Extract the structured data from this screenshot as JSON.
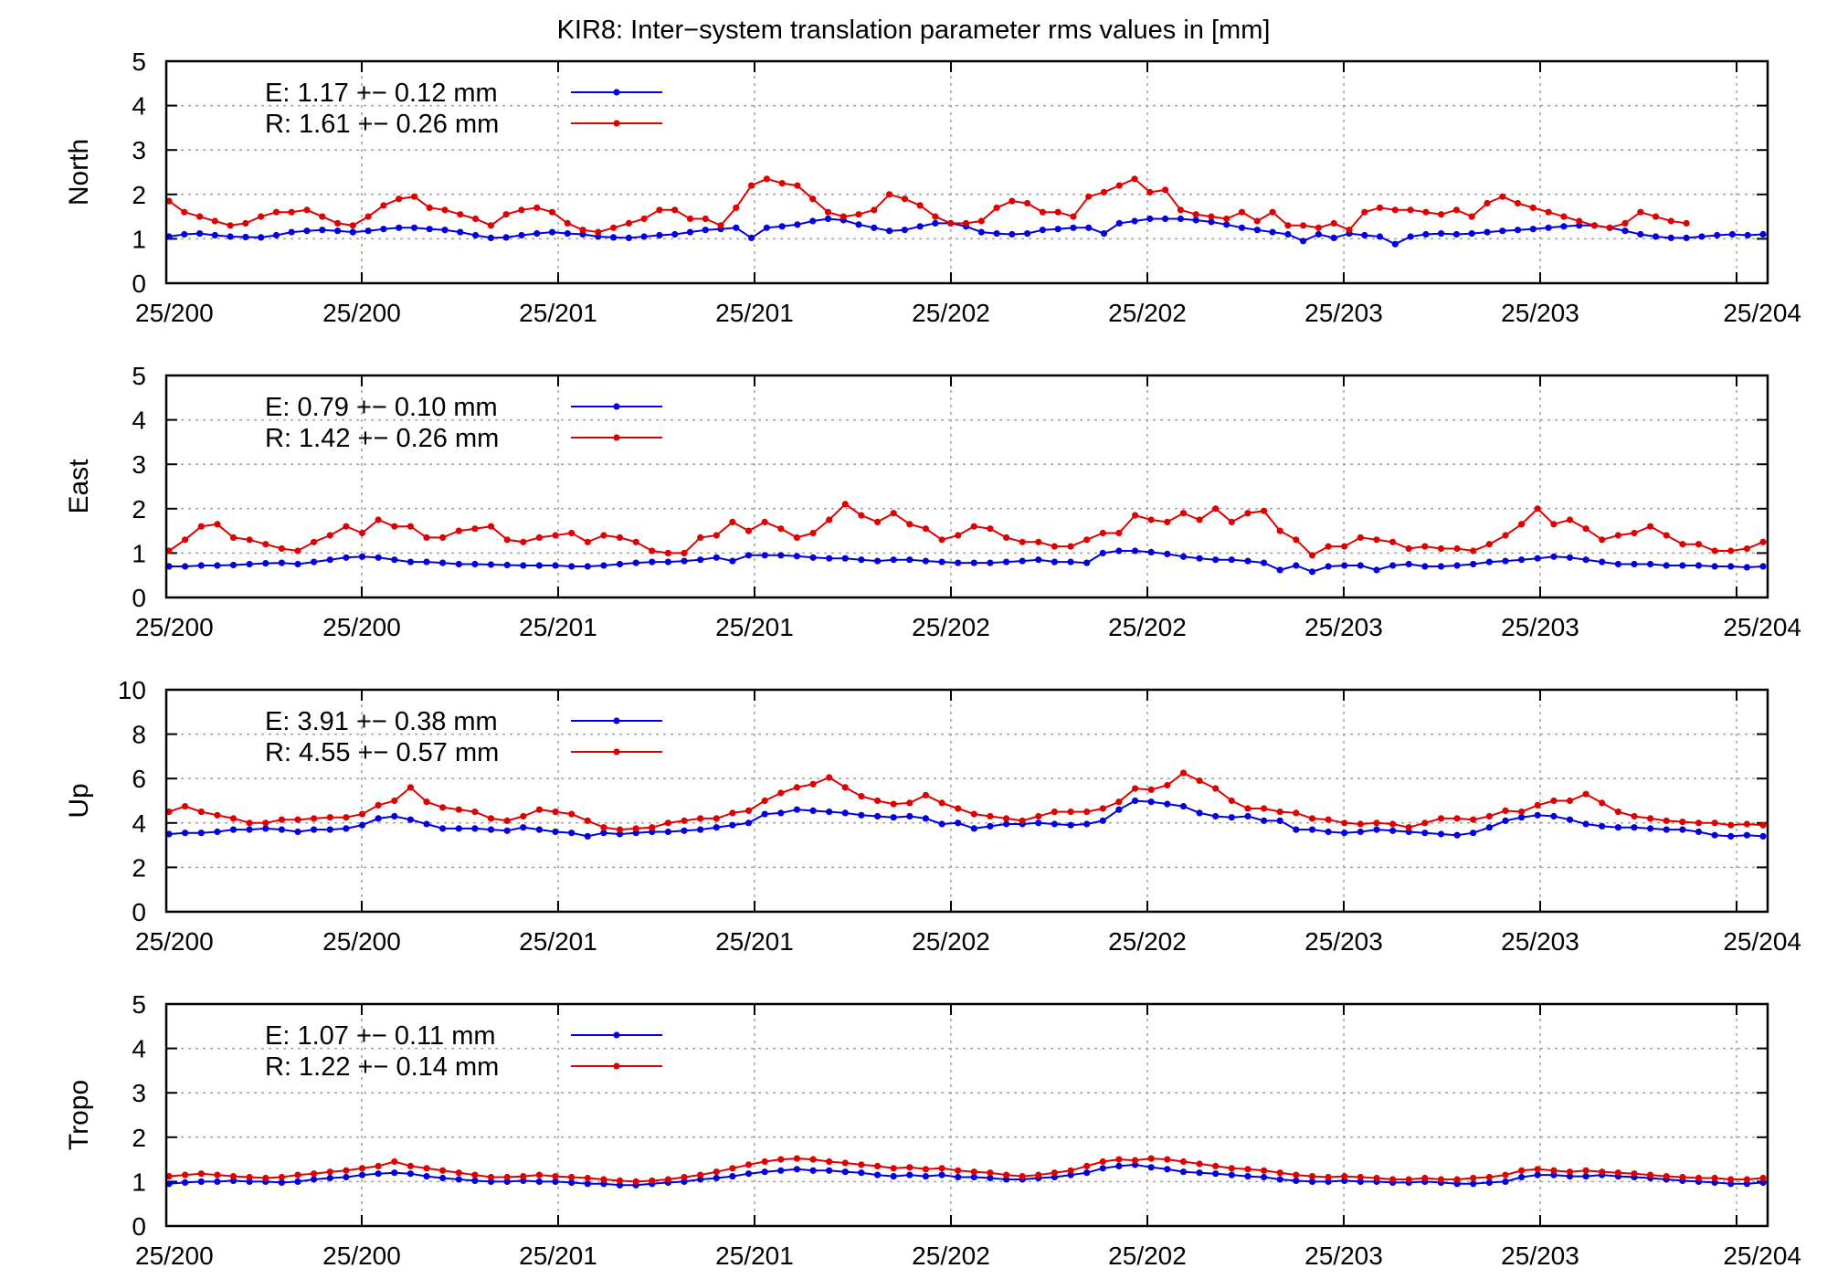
{
  "title": "KIR8: Inter−system translation parameter rms values in [mm]",
  "colors": {
    "E": "#0000e0",
    "R": "#e00000",
    "grid": "#a0a0a0",
    "axis": "#000000"
  },
  "x_tick_labels": [
    "25/200",
    "25/200",
    "25/201",
    "25/201",
    "25/202",
    "25/202",
    "25/203",
    "25/203",
    "25/204"
  ],
  "chart_data": [
    {
      "type": "line",
      "panel": "North",
      "ylabel": "North",
      "ylim": [
        0,
        5
      ],
      "yticks": [
        0,
        1,
        2,
        3,
        4,
        5
      ],
      "grid": true,
      "legend_position": "top-left",
      "series": [
        {
          "name": "E",
          "legend": "E:   1.17 +− 0.12 mm",
          "values": [
            1.05,
            1.1,
            1.12,
            1.08,
            1.05,
            1.04,
            1.03,
            1.08,
            1.15,
            1.18,
            1.2,
            1.18,
            1.15,
            1.18,
            1.22,
            1.25,
            1.25,
            1.22,
            1.2,
            1.15,
            1.08,
            1.02,
            1.03,
            1.08,
            1.12,
            1.15,
            1.12,
            1.1,
            1.05,
            1.03,
            1.02,
            1.05,
            1.08,
            1.1,
            1.15,
            1.2,
            1.22,
            1.25,
            1.02,
            1.25,
            1.28,
            1.32,
            1.4,
            1.45,
            1.42,
            1.32,
            1.25,
            1.18,
            1.2,
            1.28,
            1.35,
            1.35,
            1.28,
            1.15,
            1.12,
            1.1,
            1.12,
            1.2,
            1.22,
            1.25,
            1.25,
            1.12,
            1.35,
            1.4,
            1.45,
            1.45,
            1.45,
            1.42,
            1.38,
            1.32,
            1.25,
            1.2,
            1.15,
            1.1,
            0.95,
            1.1,
            1.02,
            1.12,
            1.08,
            1.05,
            0.88,
            1.05,
            1.1,
            1.12,
            1.1,
            1.12,
            1.15,
            1.18,
            1.2,
            1.22,
            1.25,
            1.28,
            1.3,
            1.3,
            1.25,
            1.18,
            1.1,
            1.05,
            1.02,
            1.02,
            1.05,
            1.08,
            1.1,
            1.08,
            1.1
          ]
        },
        {
          "name": "R",
          "legend": "R:   1.61 +− 0.26 mm",
          "values": [
            1.85,
            1.6,
            1.5,
            1.4,
            1.3,
            1.35,
            1.5,
            1.6,
            1.6,
            1.65,
            1.5,
            1.35,
            1.3,
            1.5,
            1.75,
            1.9,
            1.95,
            1.7,
            1.65,
            1.55,
            1.45,
            1.3,
            1.55,
            1.65,
            1.7,
            1.6,
            1.35,
            1.2,
            1.15,
            1.25,
            1.35,
            1.45,
            1.65,
            1.65,
            1.45,
            1.45,
            1.3,
            1.7,
            2.2,
            2.35,
            2.25,
            2.2,
            1.9,
            1.6,
            1.5,
            1.55,
            1.65,
            2.0,
            1.9,
            1.75,
            1.5,
            1.35,
            1.35,
            1.4,
            1.7,
            1.85,
            1.8,
            1.6,
            1.6,
            1.5,
            1.95,
            2.05,
            2.2,
            2.35,
            2.05,
            2.1,
            1.65,
            1.55,
            1.5,
            1.45,
            1.6,
            1.4,
            1.6,
            1.3,
            1.3,
            1.25,
            1.35,
            1.2,
            1.6,
            1.7,
            1.65,
            1.65,
            1.6,
            1.55,
            1.65,
            1.5,
            1.8,
            1.95,
            1.8,
            1.7,
            1.6,
            1.5,
            1.4,
            1.3,
            1.25,
            1.35,
            1.6,
            1.5,
            1.4,
            1.35
          ]
        }
      ]
    },
    {
      "type": "line",
      "panel": "East",
      "ylabel": "East",
      "ylim": [
        0,
        5
      ],
      "yticks": [
        0,
        1,
        2,
        3,
        4,
        5
      ],
      "grid": true,
      "legend_position": "top-left",
      "series": [
        {
          "name": "E",
          "legend": "E:   0.79 +− 0.10 mm",
          "values": [
            0.7,
            0.7,
            0.72,
            0.72,
            0.73,
            0.75,
            0.77,
            0.78,
            0.75,
            0.8,
            0.85,
            0.9,
            0.92,
            0.9,
            0.85,
            0.8,
            0.8,
            0.78,
            0.75,
            0.75,
            0.74,
            0.73,
            0.72,
            0.72,
            0.72,
            0.7,
            0.7,
            0.72,
            0.75,
            0.78,
            0.8,
            0.8,
            0.82,
            0.85,
            0.9,
            0.82,
            0.95,
            0.95,
            0.95,
            0.93,
            0.9,
            0.88,
            0.88,
            0.85,
            0.82,
            0.85,
            0.85,
            0.82,
            0.8,
            0.78,
            0.78,
            0.78,
            0.8,
            0.82,
            0.85,
            0.8,
            0.8,
            0.78,
            1.0,
            1.05,
            1.05,
            1.02,
            0.98,
            0.92,
            0.88,
            0.85,
            0.85,
            0.82,
            0.78,
            0.62,
            0.72,
            0.58,
            0.7,
            0.72,
            0.72,
            0.62,
            0.72,
            0.75,
            0.7,
            0.7,
            0.72,
            0.75,
            0.8,
            0.82,
            0.85,
            0.88,
            0.92,
            0.9,
            0.85,
            0.8,
            0.75,
            0.75,
            0.75,
            0.72,
            0.72,
            0.72,
            0.7,
            0.7,
            0.68,
            0.7
          ]
        },
        {
          "name": "R",
          "legend": "R:   1.42 +− 0.26 mm",
          "values": [
            1.05,
            1.3,
            1.6,
            1.65,
            1.35,
            1.3,
            1.2,
            1.1,
            1.05,
            1.25,
            1.4,
            1.6,
            1.45,
            1.75,
            1.6,
            1.6,
            1.35,
            1.35,
            1.5,
            1.55,
            1.6,
            1.3,
            1.25,
            1.35,
            1.4,
            1.45,
            1.25,
            1.4,
            1.35,
            1.25,
            1.05,
            1.0,
            1.0,
            1.35,
            1.4,
            1.7,
            1.5,
            1.7,
            1.55,
            1.35,
            1.45,
            1.75,
            2.1,
            1.85,
            1.7,
            1.9,
            1.65,
            1.55,
            1.3,
            1.4,
            1.6,
            1.55,
            1.35,
            1.25,
            1.25,
            1.15,
            1.15,
            1.3,
            1.45,
            1.45,
            1.85,
            1.75,
            1.7,
            1.9,
            1.75,
            2.0,
            1.7,
            1.9,
            1.95,
            1.5,
            1.3,
            0.95,
            1.15,
            1.15,
            1.35,
            1.3,
            1.25,
            1.1,
            1.15,
            1.1,
            1.1,
            1.05,
            1.2,
            1.4,
            1.65,
            2.0,
            1.65,
            1.75,
            1.55,
            1.3,
            1.4,
            1.45,
            1.6,
            1.4,
            1.2,
            1.2,
            1.05,
            1.05,
            1.1,
            1.25
          ]
        }
      ]
    },
    {
      "type": "line",
      "panel": "Up",
      "ylabel": "Up",
      "ylim": [
        0,
        10
      ],
      "yticks": [
        0,
        2,
        4,
        6,
        8,
        10
      ],
      "grid": true,
      "legend_position": "top-left",
      "series": [
        {
          "name": "E",
          "legend": "E:   3.91 +− 0.38 mm",
          "values": [
            3.5,
            3.55,
            3.55,
            3.6,
            3.7,
            3.7,
            3.75,
            3.7,
            3.6,
            3.7,
            3.7,
            3.75,
            3.9,
            4.2,
            4.3,
            4.15,
            3.95,
            3.75,
            3.75,
            3.75,
            3.7,
            3.65,
            3.8,
            3.7,
            3.6,
            3.55,
            3.4,
            3.55,
            3.5,
            3.55,
            3.6,
            3.6,
            3.65,
            3.7,
            3.8,
            3.9,
            4.0,
            4.4,
            4.45,
            4.6,
            4.55,
            4.5,
            4.45,
            4.35,
            4.3,
            4.25,
            4.3,
            4.2,
            3.95,
            4.0,
            3.75,
            3.85,
            3.95,
            3.95,
            4.0,
            3.95,
            3.9,
            3.95,
            4.1,
            4.6,
            5.0,
            4.95,
            4.85,
            4.75,
            4.45,
            4.3,
            4.25,
            4.3,
            4.1,
            4.1,
            3.7,
            3.7,
            3.6,
            3.55,
            3.6,
            3.7,
            3.65,
            3.6,
            3.55,
            3.5,
            3.45,
            3.55,
            3.8,
            4.1,
            4.25,
            4.35,
            4.3,
            4.15,
            3.95,
            3.85,
            3.8,
            3.8,
            3.75,
            3.7,
            3.7,
            3.6,
            3.45,
            3.4,
            3.45,
            3.4
          ]
        },
        {
          "name": "R",
          "legend": "R:   4.55 +− 0.57 mm",
          "values": [
            4.5,
            4.75,
            4.5,
            4.35,
            4.2,
            4.0,
            4.0,
            4.15,
            4.15,
            4.2,
            4.25,
            4.25,
            4.4,
            4.8,
            5.0,
            5.6,
            4.95,
            4.7,
            4.6,
            4.5,
            4.2,
            4.1,
            4.3,
            4.6,
            4.5,
            4.4,
            4.1,
            3.8,
            3.7,
            3.75,
            3.8,
            4.0,
            4.1,
            4.2,
            4.2,
            4.45,
            4.55,
            5.0,
            5.35,
            5.6,
            5.75,
            6.05,
            5.6,
            5.2,
            5.0,
            4.85,
            4.9,
            5.25,
            4.9,
            4.65,
            4.4,
            4.3,
            4.2,
            4.1,
            4.3,
            4.5,
            4.5,
            4.5,
            4.65,
            4.95,
            5.55,
            5.5,
            5.7,
            6.25,
            5.9,
            5.55,
            5.0,
            4.65,
            4.65,
            4.5,
            4.45,
            4.2,
            4.15,
            4.0,
            3.95,
            4.0,
            3.95,
            3.8,
            4.0,
            4.2,
            4.2,
            4.15,
            4.3,
            4.55,
            4.5,
            4.8,
            5.0,
            5.0,
            5.3,
            4.9,
            4.5,
            4.3,
            4.2,
            4.1,
            4.05,
            4.0,
            4.0,
            3.9,
            3.95,
            3.9
          ]
        }
      ]
    },
    {
      "type": "line",
      "panel": "Tropo",
      "ylabel": "Tropo",
      "ylim": [
        0,
        5
      ],
      "yticks": [
        0,
        1,
        2,
        3,
        4,
        5
      ],
      "grid": true,
      "legend_position": "top-left",
      "series": [
        {
          "name": "E",
          "legend": "E:   1.07 +− 0.11 mm",
          "values": [
            0.95,
            0.98,
            1.0,
            1.0,
            1.02,
            1.0,
            1.0,
            0.98,
            1.0,
            1.05,
            1.08,
            1.1,
            1.15,
            1.18,
            1.2,
            1.18,
            1.12,
            1.08,
            1.05,
            1.02,
            1.0,
            1.0,
            1.02,
            1.0,
            1.0,
            0.98,
            0.95,
            0.95,
            0.92,
            0.92,
            0.95,
            0.98,
            1.0,
            1.05,
            1.08,
            1.12,
            1.18,
            1.22,
            1.25,
            1.28,
            1.25,
            1.25,
            1.22,
            1.2,
            1.15,
            1.12,
            1.15,
            1.12,
            1.15,
            1.1,
            1.1,
            1.08,
            1.05,
            1.05,
            1.08,
            1.1,
            1.15,
            1.2,
            1.3,
            1.35,
            1.38,
            1.32,
            1.28,
            1.22,
            1.2,
            1.18,
            1.15,
            1.12,
            1.1,
            1.05,
            1.02,
            1.0,
            1.0,
            1.02,
            1.0,
            1.0,
            0.98,
            0.98,
            1.0,
            0.98,
            0.95,
            0.95,
            0.98,
            1.0,
            1.1,
            1.15,
            1.15,
            1.12,
            1.12,
            1.15,
            1.12,
            1.1,
            1.08,
            1.05,
            1.02,
            1.0,
            0.98,
            0.95,
            0.95,
            0.98
          ]
        },
        {
          "name": "R",
          "legend": "R:   1.22 +− 0.14 mm",
          "values": [
            1.12,
            1.15,
            1.18,
            1.15,
            1.12,
            1.1,
            1.08,
            1.1,
            1.15,
            1.18,
            1.22,
            1.25,
            1.3,
            1.35,
            1.45,
            1.35,
            1.3,
            1.25,
            1.2,
            1.15,
            1.1,
            1.1,
            1.12,
            1.15,
            1.12,
            1.1,
            1.08,
            1.05,
            1.02,
            1.0,
            1.02,
            1.05,
            1.1,
            1.15,
            1.22,
            1.3,
            1.38,
            1.45,
            1.5,
            1.52,
            1.5,
            1.45,
            1.42,
            1.38,
            1.35,
            1.3,
            1.32,
            1.28,
            1.3,
            1.25,
            1.22,
            1.2,
            1.15,
            1.12,
            1.15,
            1.2,
            1.25,
            1.35,
            1.45,
            1.5,
            1.48,
            1.52,
            1.5,
            1.45,
            1.4,
            1.35,
            1.3,
            1.28,
            1.25,
            1.2,
            1.15,
            1.12,
            1.1,
            1.12,
            1.1,
            1.08,
            1.05,
            1.05,
            1.08,
            1.05,
            1.05,
            1.08,
            1.1,
            1.15,
            1.25,
            1.28,
            1.25,
            1.22,
            1.25,
            1.22,
            1.2,
            1.18,
            1.15,
            1.12,
            1.1,
            1.08,
            1.08,
            1.05,
            1.05,
            1.08
          ]
        }
      ]
    }
  ]
}
